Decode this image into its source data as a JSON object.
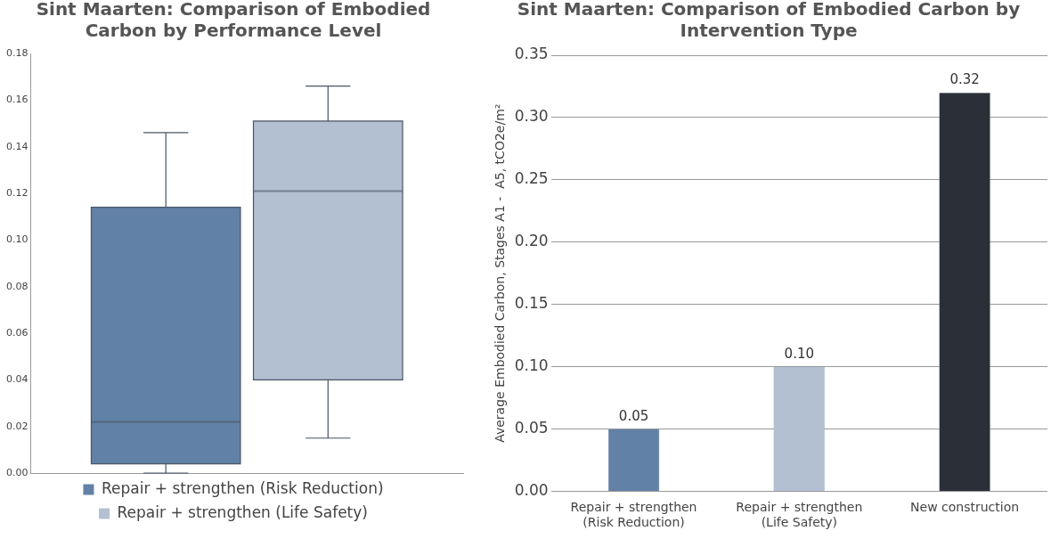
{
  "chart_data": [
    {
      "type": "box",
      "title": "Sint Maarten: Comparison of Embodied Carbon by Performance Level",
      "categories": [
        null
      ],
      "series": [
        {
          "name": "Repair + strengthen (Risk Reduction)",
          "color": "#6281a6",
          "boxes": [
            {
              "low": 0,
              "q1": 0.004,
              "median": 0.022,
              "q3": 0.114,
              "high": 0.146
            }
          ]
        },
        {
          "name": "Repair + strengthen (Life Safety)",
          "color": "#b3c0d1",
          "boxes": [
            {
              "low": 0.015,
              "q1": 0.04,
              "median": 0.121,
              "q3": 0.151,
              "high": 0.166
            }
          ]
        }
      ],
      "ylim": [
        0,
        0.18
      ],
      "yticks": [
        {
          "value": 0,
          "label": "0.00"
        },
        {
          "value": 0.02,
          "label": "0.02"
        },
        {
          "value": 0.04,
          "label": "0.04"
        },
        {
          "value": 0.06,
          "label": "0.06"
        },
        {
          "value": 0.08,
          "label": "0.08"
        },
        {
          "value": 0.1,
          "label": "0.10"
        },
        {
          "value": 0.12,
          "label": "0.12"
        },
        {
          "value": 0.14,
          "label": "0.14"
        },
        {
          "value": 0.16,
          "label": "0.16"
        },
        {
          "value": 0.18,
          "label": "0.18"
        }
      ],
      "grid": false,
      "legend": "bottom"
    },
    {
      "type": "bar",
      "title": "Sint Maarten: Comparison of Embodied Carbon by Intervention Type",
      "ylabel": "Average Embodied Carbon, Stages A1 -  A5, tCO2e/m²",
      "categories": [
        "Repair + strengthen\n(Risk Reduction)",
        "Repair + strengthen\n(Life Safety)",
        "New construction"
      ],
      "values": [
        0.05,
        0.1,
        0.32
      ],
      "colors": [
        "#6281a6",
        "#b3c0d1",
        "#2a2f38"
      ],
      "value_labels": [
        "0.05",
        "0.10",
        "0.32"
      ],
      "ylim": [
        0,
        0.35
      ],
      "yticks": [
        {
          "value": 0,
          "label": "0.00"
        },
        {
          "value": 0.05,
          "label": "0.05"
        },
        {
          "value": 0.1,
          "label": "0.10"
        },
        {
          "value": 0.15,
          "label": "0.15"
        },
        {
          "value": 0.2,
          "label": "0.20"
        },
        {
          "value": 0.25,
          "label": "0.25"
        },
        {
          "value": 0.3,
          "label": "0.30"
        },
        {
          "value": 0.35,
          "label": "0.35"
        }
      ],
      "grid": "y"
    }
  ]
}
